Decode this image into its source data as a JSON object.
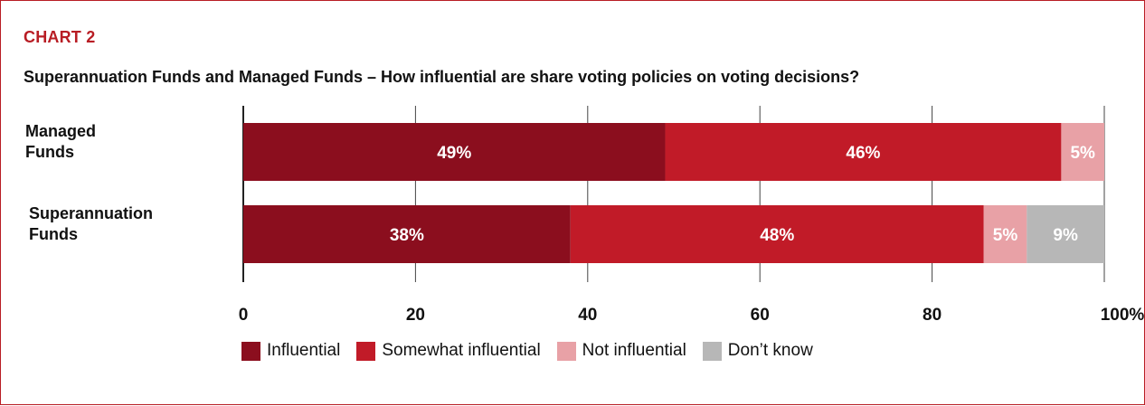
{
  "header": {
    "kicker": "CHART 2",
    "title": "Superannuation Funds and Managed Funds – How influential are share voting policies on voting decisions?"
  },
  "colors": {
    "accent": "#b81d24",
    "series": [
      "#8b0e1e",
      "#c11b28",
      "#e8a1a6",
      "#b7b7b7"
    ]
  },
  "chart_data": {
    "type": "bar",
    "orientation": "horizontal",
    "stacked": true,
    "title": "Superannuation Funds and Managed Funds – How influential are share voting policies on voting decisions?",
    "xlabel": "",
    "ylabel": "",
    "xlim": [
      0,
      100
    ],
    "x_ticks": [
      0,
      20,
      40,
      60,
      80,
      100
    ],
    "x_tick_labels": [
      "0",
      "20",
      "40",
      "60",
      "80",
      "100%"
    ],
    "grid": true,
    "legend_position": "bottom-left",
    "categories": [
      [
        "Managed",
        "Funds"
      ],
      [
        "Superannuation",
        "Funds"
      ]
    ],
    "series": [
      {
        "name": "Influential",
        "values": [
          49,
          38
        ],
        "labels": [
          "49%",
          "38%"
        ]
      },
      {
        "name": "Somewhat influential",
        "values": [
          46,
          48
        ],
        "labels": [
          "46%",
          "48%"
        ]
      },
      {
        "name": "Not influential",
        "values": [
          5,
          5
        ],
        "labels": [
          "5%",
          "5%"
        ]
      },
      {
        "name": "Don’t know",
        "values": [
          0,
          9
        ],
        "labels": [
          "",
          "9%"
        ]
      }
    ]
  }
}
